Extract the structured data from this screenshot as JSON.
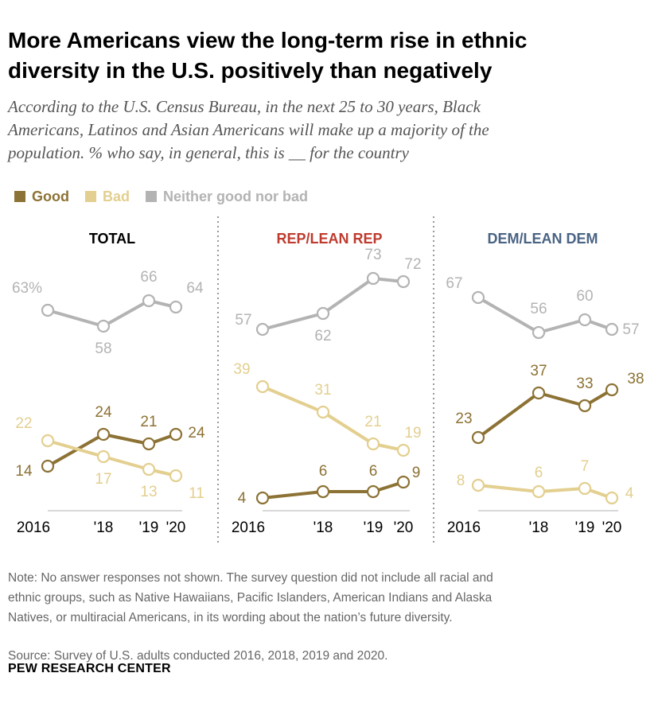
{
  "title_line1": "More Americans view the long-term rise in ethnic",
  "title_line2": "diversity in the U.S. positively than negatively",
  "subtitle_line1": "According to the U.S. Census Bureau, in the next 25 to 30 years, Black",
  "subtitle_line2": "Americans, Latinos and Asian Americans will make up a majority of the",
  "subtitle_line3": "population. % who say, in general, this is __  for the country",
  "legend": [
    {
      "label": "Good",
      "color": "#8c7234"
    },
    {
      "label": "Bad",
      "color": "#e3cf8f"
    },
    {
      "label": "Neither good nor bad",
      "color": "#b3b3b3"
    }
  ],
  "colors": {
    "good": "#8c7234",
    "bad": "#e3cf8f",
    "neither": "#b3b3b3",
    "rep": "#bf3b2e",
    "dem": "#4a6484"
  },
  "note_lines": [
    "Note: No answer responses not shown. The survey question did not include all racial and",
    "ethnic groups, such as Native Hawaiians, Pacific Islanders, American Indians and Alaska",
    "Natives, or multiracial Americans, in its wording about the nation’s future diversity."
  ],
  "source": "Source: Survey of U.S. adults conducted 2016, 2018, 2019 and 2020.",
  "brand": "PEW RESEARCH CENTER",
  "chart_data": [
    {
      "type": "line",
      "title": "TOTAL",
      "x": [
        2016,
        2018,
        2019,
        2020
      ],
      "x_tick_labels": [
        "2016",
        "'18",
        "'19",
        "'20"
      ],
      "series": [
        {
          "name": "Good",
          "values": [
            14,
            24,
            21,
            24
          ],
          "labels": [
            "14",
            "24",
            "21",
            "24"
          ]
        },
        {
          "name": "Bad",
          "values": [
            22,
            17,
            13,
            11
          ],
          "labels": [
            "22",
            "17",
            "13",
            "11"
          ]
        },
        {
          "name": "Neither good nor bad",
          "values": [
            63,
            58,
            66,
            64
          ],
          "labels": [
            "63%",
            "58",
            "66",
            "64"
          ]
        }
      ]
    },
    {
      "type": "line",
      "title": "REP/LEAN REP",
      "x": [
        2016,
        2018,
        2019,
        2020
      ],
      "x_tick_labels": [
        "2016",
        "'18",
        "'19",
        "'20"
      ],
      "series": [
        {
          "name": "Good",
          "values": [
            4,
            6,
            6,
            9
          ],
          "labels": [
            "4",
            "6",
            "6",
            "9"
          ]
        },
        {
          "name": "Bad",
          "values": [
            39,
            31,
            21,
            19
          ],
          "labels": [
            "39",
            "31",
            "21",
            "19"
          ]
        },
        {
          "name": "Neither good nor bad",
          "values": [
            57,
            62,
            73,
            72
          ],
          "labels": [
            "57",
            "62",
            "73",
            "72"
          ]
        }
      ]
    },
    {
      "type": "line",
      "title": "DEM/LEAN DEM",
      "x": [
        2016,
        2018,
        2019,
        2020
      ],
      "x_tick_labels": [
        "2016",
        "'18",
        "'19",
        "'20"
      ],
      "series": [
        {
          "name": "Good",
          "values": [
            23,
            37,
            33,
            38
          ],
          "labels": [
            "23",
            "37",
            "33",
            "38"
          ]
        },
        {
          "name": "Bad",
          "values": [
            8,
            6,
            7,
            4
          ],
          "labels": [
            "8",
            "6",
            "7",
            "4"
          ]
        },
        {
          "name": "Neither good nor bad",
          "values": [
            67,
            56,
            60,
            57
          ],
          "labels": [
            "67",
            "56",
            "60",
            "57"
          ]
        }
      ]
    }
  ]
}
